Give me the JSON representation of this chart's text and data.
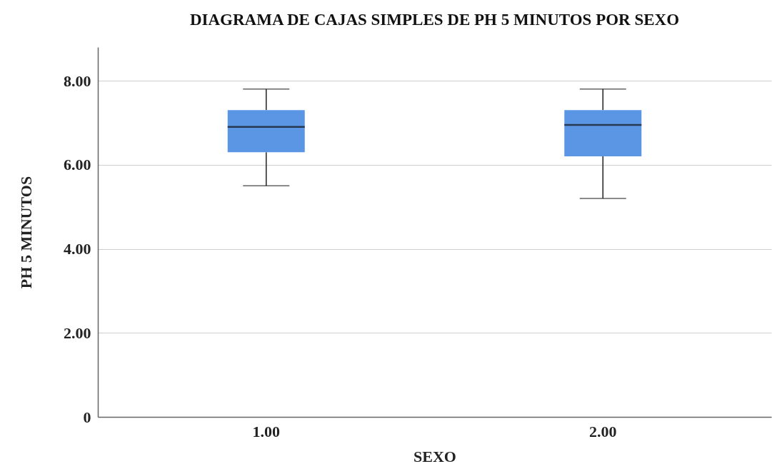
{
  "chart_data": {
    "type": "box",
    "title": "DIAGRAMA DE CAJAS SIMPLES DE PH 5 MINUTOS POR SEXO",
    "xlabel": "SEXO",
    "ylabel": "PH  5  MINUTOS",
    "categories": [
      "1.00",
      "2.00"
    ],
    "series": [
      {
        "color": "#5b96e5",
        "boxes": [
          {
            "low": 5.5,
            "q1": 6.3,
            "median": 6.9,
            "q3": 7.3,
            "high": 7.8
          },
          {
            "low": 5.2,
            "q1": 6.2,
            "median": 6.95,
            "q3": 7.3,
            "high": 7.8
          }
        ]
      }
    ],
    "ylim": [
      0,
      8.8
    ],
    "yticks": [
      {
        "value": 0,
        "label": "0"
      },
      {
        "value": 2,
        "label": "2.00"
      },
      {
        "value": 4,
        "label": "4.00"
      },
      {
        "value": 6,
        "label": "6.00"
      },
      {
        "value": 8,
        "label": "8.00"
      }
    ],
    "grid": "y"
  }
}
